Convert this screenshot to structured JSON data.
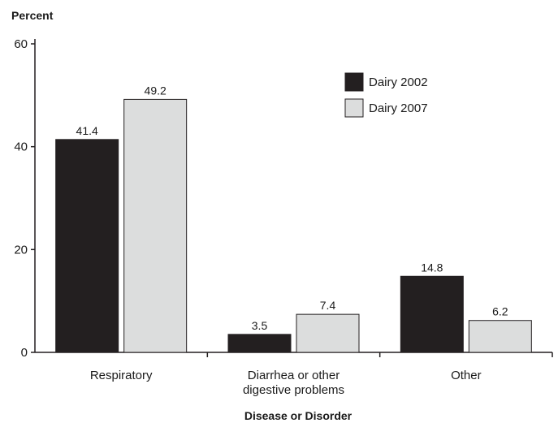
{
  "chart_data": {
    "type": "bar",
    "ylabel": "Percent",
    "xlabel": "Disease or Disorder",
    "ylim": [
      0,
      60
    ],
    "yticks": [
      "0",
      "20",
      "40",
      "60"
    ],
    "categories": [
      [
        "Respiratory"
      ],
      [
        "Diarrhea or other",
        "digestive problems"
      ],
      [
        "Other"
      ]
    ],
    "series": [
      {
        "name": "Dairy 2002",
        "values": [
          41.4,
          3.5,
          14.8
        ],
        "labels": [
          "41.4",
          "3.5",
          "14.8"
        ],
        "color": "#231f20"
      },
      {
        "name": "Dairy 2007",
        "values": [
          49.2,
          7.4,
          6.2
        ],
        "labels": [
          "49.2",
          "7.4",
          "6.2"
        ],
        "color": "#dcdddd"
      }
    ],
    "legend_position": "top-right",
    "grid": false
  }
}
